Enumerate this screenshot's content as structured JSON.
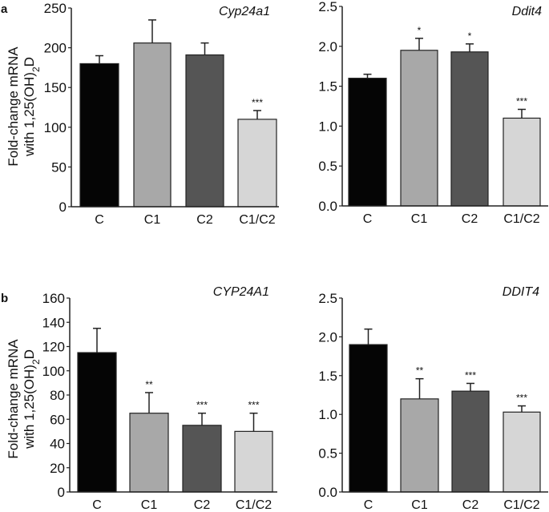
{
  "panel_labels": [
    "a",
    "b"
  ],
  "y_axis_label": {
    "line1": "Fold-change mRNA",
    "line2_prefix": "with 1,25(OH)",
    "line2_sub": "2",
    "line2_suffix": "D"
  },
  "bar_colors": {
    "C": "#050505",
    "C1": "#a8a8a8",
    "C2": "#555555",
    "C1/C2": "#d6d6d6"
  },
  "chart_data": [
    {
      "panel": "a",
      "type": "bar",
      "title": "Cyp24a1",
      "categories": [
        "C",
        "C1",
        "C2",
        "C1/C2"
      ],
      "values": [
        180,
        206,
        191,
        110
      ],
      "errors": [
        10,
        29,
        15,
        11
      ],
      "significance": [
        "",
        "",
        "",
        "***"
      ],
      "ylim": [
        0,
        250
      ],
      "yticks": [
        0,
        50,
        100,
        150,
        200,
        250
      ],
      "ytick_labels": [
        "0",
        "50",
        "100",
        "150",
        "200",
        "250"
      ],
      "xlabel": "",
      "ylabel": "Fold-change mRNA with 1,25(OH)2D"
    },
    {
      "panel": "a",
      "type": "bar",
      "title": "Ddit4",
      "categories": [
        "C",
        "C1",
        "C2",
        "C1/C2"
      ],
      "values": [
        1.6,
        1.95,
        1.93,
        1.1
      ],
      "errors": [
        0.05,
        0.15,
        0.1,
        0.11
      ],
      "significance": [
        "",
        "*",
        "*",
        "***"
      ],
      "ylim": [
        0,
        2.5
      ],
      "yticks": [
        0,
        0.5,
        1.0,
        1.5,
        2.0,
        2.5
      ],
      "ytick_labels": [
        "0.0",
        "0.5",
        "1.0",
        "1.5",
        "2.0",
        "2.5"
      ],
      "xlabel": "",
      "ylabel": ""
    },
    {
      "panel": "b",
      "type": "bar",
      "title": "CYP24A1",
      "categories": [
        "C",
        "C1",
        "C2",
        "C1/C2"
      ],
      "values": [
        115,
        65,
        55,
        50
      ],
      "errors": [
        20,
        17,
        10,
        15
      ],
      "significance": [
        "",
        "**",
        "***",
        "***"
      ],
      "ylim": [
        0,
        160
      ],
      "yticks": [
        0,
        20,
        40,
        60,
        80,
        100,
        120,
        140,
        160
      ],
      "ytick_labels": [
        "0",
        "20",
        "40",
        "60",
        "80",
        "100",
        "120",
        "140",
        "160"
      ],
      "xlabel": "",
      "ylabel": "Fold-change mRNA with 1,25(OH)2D"
    },
    {
      "panel": "b",
      "type": "bar",
      "title": "DDIT4",
      "categories": [
        "C",
        "C1",
        "C2",
        "C1/C2"
      ],
      "values": [
        1.9,
        1.2,
        1.3,
        1.03
      ],
      "errors": [
        0.2,
        0.26,
        0.1,
        0.08
      ],
      "significance": [
        "",
        "**",
        "***",
        "***"
      ],
      "ylim": [
        0,
        2.5
      ],
      "yticks": [
        0,
        0.5,
        1.0,
        1.5,
        2.0,
        2.5
      ],
      "ytick_labels": [
        "0.0",
        "0.5",
        "1.0",
        "1.5",
        "2.0",
        "2.5"
      ],
      "xlabel": "",
      "ylabel": ""
    }
  ]
}
